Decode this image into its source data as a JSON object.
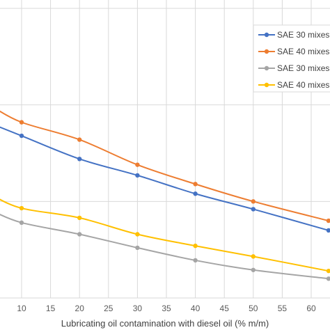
{
  "chart_data": {
    "type": "line",
    "xlabel": "Lubricating oil contamination with diesel oil (% m/m)",
    "ylabel": "",
    "xlim": [
      6,
      63
    ],
    "ylim": [
      0,
      150
    ],
    "x_ticks": [
      10,
      15,
      20,
      25,
      30,
      35,
      40,
      45,
      50,
      55,
      60
    ],
    "grid": "vertical and horizontal",
    "legend_position": "top-right",
    "series": [
      {
        "name": "SAE 30 mixes",
        "color": "#4472C4",
        "points": [
          [
            5,
            90
          ],
          [
            10,
            84
          ],
          [
            20,
            72
          ],
          [
            30,
            63.5
          ],
          [
            40,
            54
          ],
          [
            50,
            46
          ],
          [
            63,
            35
          ]
        ]
      },
      {
        "name": "SAE 40 mixes",
        "color": "#ED7D31",
        "points": [
          [
            5,
            99
          ],
          [
            10,
            91
          ],
          [
            20,
            82
          ],
          [
            30,
            69
          ],
          [
            40,
            59
          ],
          [
            50,
            50
          ],
          [
            63,
            40
          ]
        ]
      },
      {
        "name": "SAE 30 mixes",
        "color": "#A5A5A5",
        "points": [
          [
            5,
            45
          ],
          [
            10,
            39
          ],
          [
            20,
            33
          ],
          [
            30,
            26
          ],
          [
            40,
            19.5
          ],
          [
            50,
            14.5
          ],
          [
            63,
            10
          ]
        ]
      },
      {
        "name": "SAE 40 mixes",
        "color": "#FFC000",
        "points": [
          [
            5,
            53
          ],
          [
            10,
            46.5
          ],
          [
            20,
            41.5
          ],
          [
            30,
            33
          ],
          [
            40,
            27
          ],
          [
            50,
            21.5
          ],
          [
            63,
            14
          ]
        ]
      }
    ]
  }
}
